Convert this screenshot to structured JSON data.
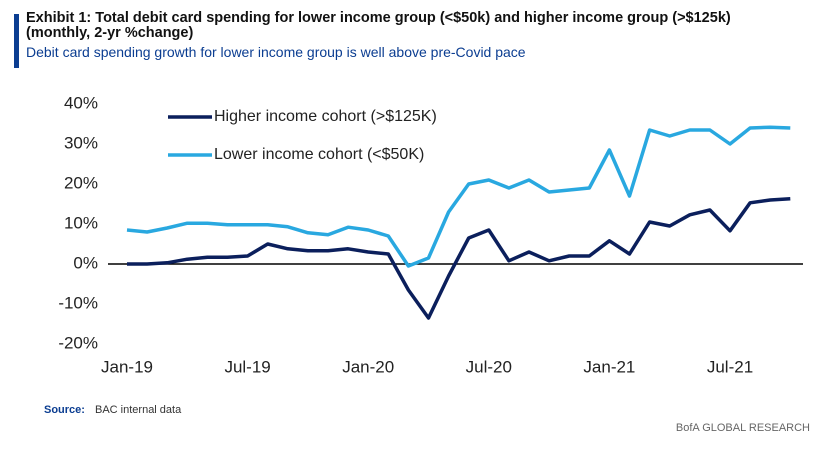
{
  "chart_data": {
    "type": "line",
    "title": "Exhibit 1: Total debit card spending for lower income group (<$50k) and higher income group (>$125k) (monthly, 2-yr %change)",
    "subtitle": "Debit card spending growth for lower income group is well above pre-Covid pace",
    "source_label": "Source:",
    "source": "BAC internal data",
    "footer": "BofA GLOBAL RESEARCH",
    "categories": [
      "Jan-19",
      null,
      null,
      null,
      null,
      null,
      "Jul-19",
      null,
      null,
      null,
      null,
      null,
      "Jan-20",
      null,
      null,
      null,
      null,
      null,
      "Jul-20",
      null,
      null,
      null,
      null,
      null,
      "Jan-21",
      null,
      null,
      null,
      null,
      null,
      "Jul-21",
      null,
      null,
      null
    ],
    "ylim": [
      -20,
      40
    ],
    "yticks": [
      {
        "value": -20,
        "label": "-20%"
      },
      {
        "value": -10,
        "label": "-10%"
      },
      {
        "value": 0,
        "label": "0%"
      },
      {
        "value": 10,
        "label": "10%"
      },
      {
        "value": 20,
        "label": "20%"
      },
      {
        "value": 30,
        "label": "30%"
      },
      {
        "value": 40,
        "label": "40%"
      }
    ],
    "series": [
      {
        "name": "Higher income cohort (>$125K)",
        "color": "#0b1f5c",
        "values": [
          0,
          0,
          0.3,
          1.2,
          1.7,
          1.7,
          2.0,
          5.0,
          3.8,
          3.3,
          3.3,
          3.8,
          3,
          2.5,
          -6.5,
          -13.5,
          -3,
          6.5,
          8.5,
          0.8,
          3,
          0.8,
          2,
          2,
          5.8,
          2.5,
          10.5,
          9.5,
          12.3,
          13.5,
          8.3,
          15.3,
          16,
          16.3
        ]
      },
      {
        "name": "Lower income cohort (<$50K)",
        "color": "#29a8e0",
        "values": [
          8.5,
          8,
          9,
          10.2,
          10.2,
          9.8,
          9.8,
          9.8,
          9.3,
          7.8,
          7.3,
          9.2,
          8.5,
          7,
          -0.5,
          1.5,
          13,
          20,
          21,
          19,
          21,
          18,
          18.5,
          19,
          28.5,
          17,
          33.5,
          32,
          33.5,
          33.5,
          30,
          34,
          34.2,
          34
        ]
      }
    ]
  }
}
